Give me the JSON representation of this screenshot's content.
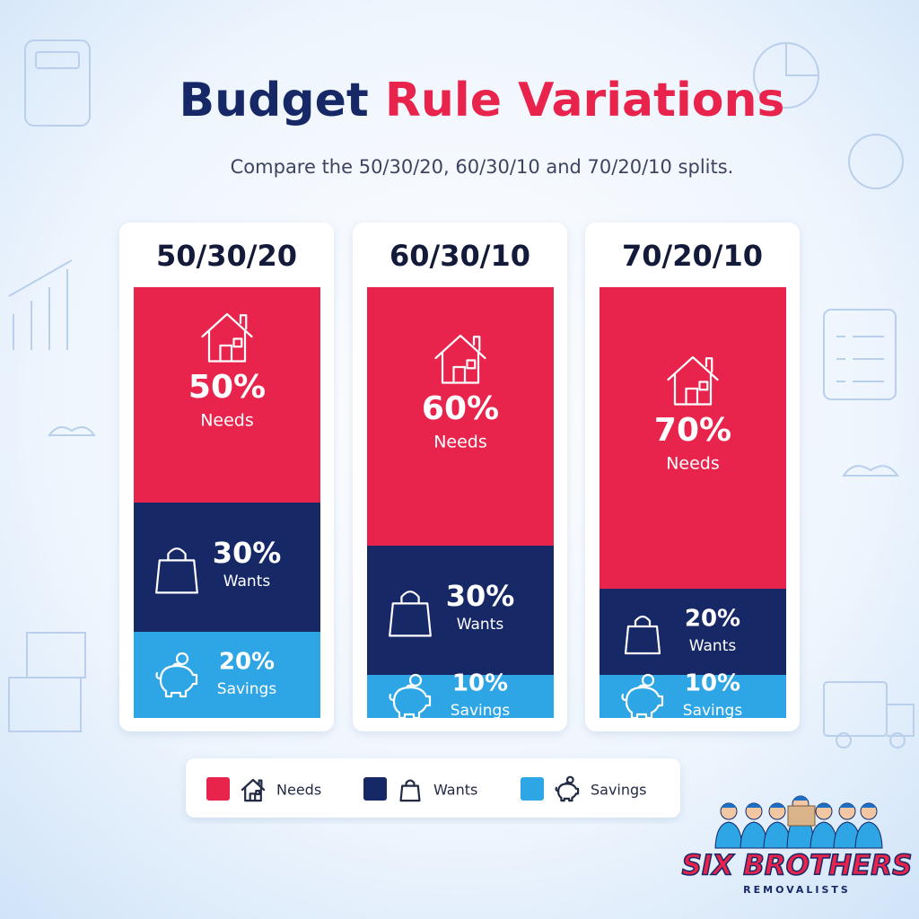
{
  "chart_data": {
    "type": "bar",
    "stacked": true,
    "title": "Budget Rule Variations",
    "subtitle": "Compare the 50/30/20, 60/30/10 and 70/20/10 splits.",
    "categories": [
      "50/30/20",
      "60/30/10",
      "70/20/10"
    ],
    "series": [
      {
        "name": "Needs",
        "color": "#e8244c",
        "values": [
          50,
          60,
          70
        ],
        "value_labels": [
          "50%",
          "60%",
          "70%"
        ]
      },
      {
        "name": "Wants",
        "color": "#172867",
        "values": [
          30,
          30,
          20
        ],
        "value_labels": [
          "30%",
          "30%",
          "20%"
        ]
      },
      {
        "name": "Savings",
        "color": "#2ea6e6",
        "values": [
          20,
          10,
          10
        ],
        "value_labels": [
          "20%",
          "10%",
          "10%"
        ]
      }
    ],
    "ylim": [
      0,
      100
    ],
    "legend": "bottom"
  },
  "logo": {
    "name": "SIX BROTHERS",
    "tagline": "REMOVALISTS"
  }
}
